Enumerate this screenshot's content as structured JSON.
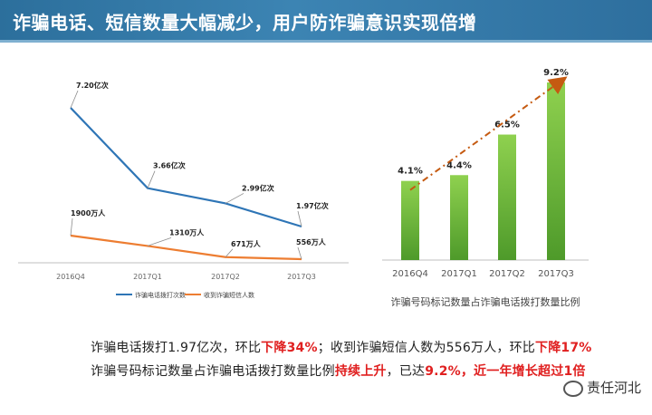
{
  "header": {
    "title": "诈骗电话、短信数量大幅减少，用户防诈骗意识实现倍增"
  },
  "chart_data": [
    {
      "type": "line",
      "categories": [
        "2016Q4",
        "2017Q1",
        "2017Q2",
        "2017Q3"
      ],
      "series": [
        {
          "name": "诈骗电话拨打次数",
          "values": [
            7.2,
            3.66,
            2.99,
            1.97
          ],
          "labels": [
            "7.20亿次",
            "3.66亿次",
            "2.99亿次",
            "1.97亿次"
          ],
          "color": "#2e75b6"
        },
        {
          "name": "收到诈骗短信人数",
          "values": [
            1900,
            1310,
            671,
            556
          ],
          "labels": [
            "1900万人",
            "1310万人",
            "671万人",
            "556万人"
          ],
          "color": "#ed7d31"
        }
      ],
      "legend": "bottom"
    },
    {
      "type": "bar",
      "categories": [
        "2016Q4",
        "2017Q1",
        "2017Q2",
        "2017Q3"
      ],
      "values": [
        4.1,
        4.4,
        6.5,
        9.2
      ],
      "labels": [
        "4.1%",
        "4.4%",
        "6.5%",
        "9.2%"
      ],
      "xlabel": "诈骗号码标记数量占诈骗电话拨打数量比例",
      "ylim": [
        0,
        10
      ],
      "trend_arrow": true,
      "bar_color": "#6fbf3a",
      "arrow_color": "#c55a11"
    }
  ],
  "summary": {
    "line1": {
      "a": "诈骗电话拨打1.97亿次，环比",
      "b": "下降34%",
      "c": "；收到诈骗短信人数为556万人，环比",
      "d": "下降17%"
    },
    "line2": {
      "a": "诈骗号码标记数量占诈骗电话拨打数量比例",
      "b": "持续上升",
      "c": "，已达",
      "d": "9.2%，近一年增长超过1倍"
    }
  },
  "watermark": {
    "text": "责任河北"
  }
}
